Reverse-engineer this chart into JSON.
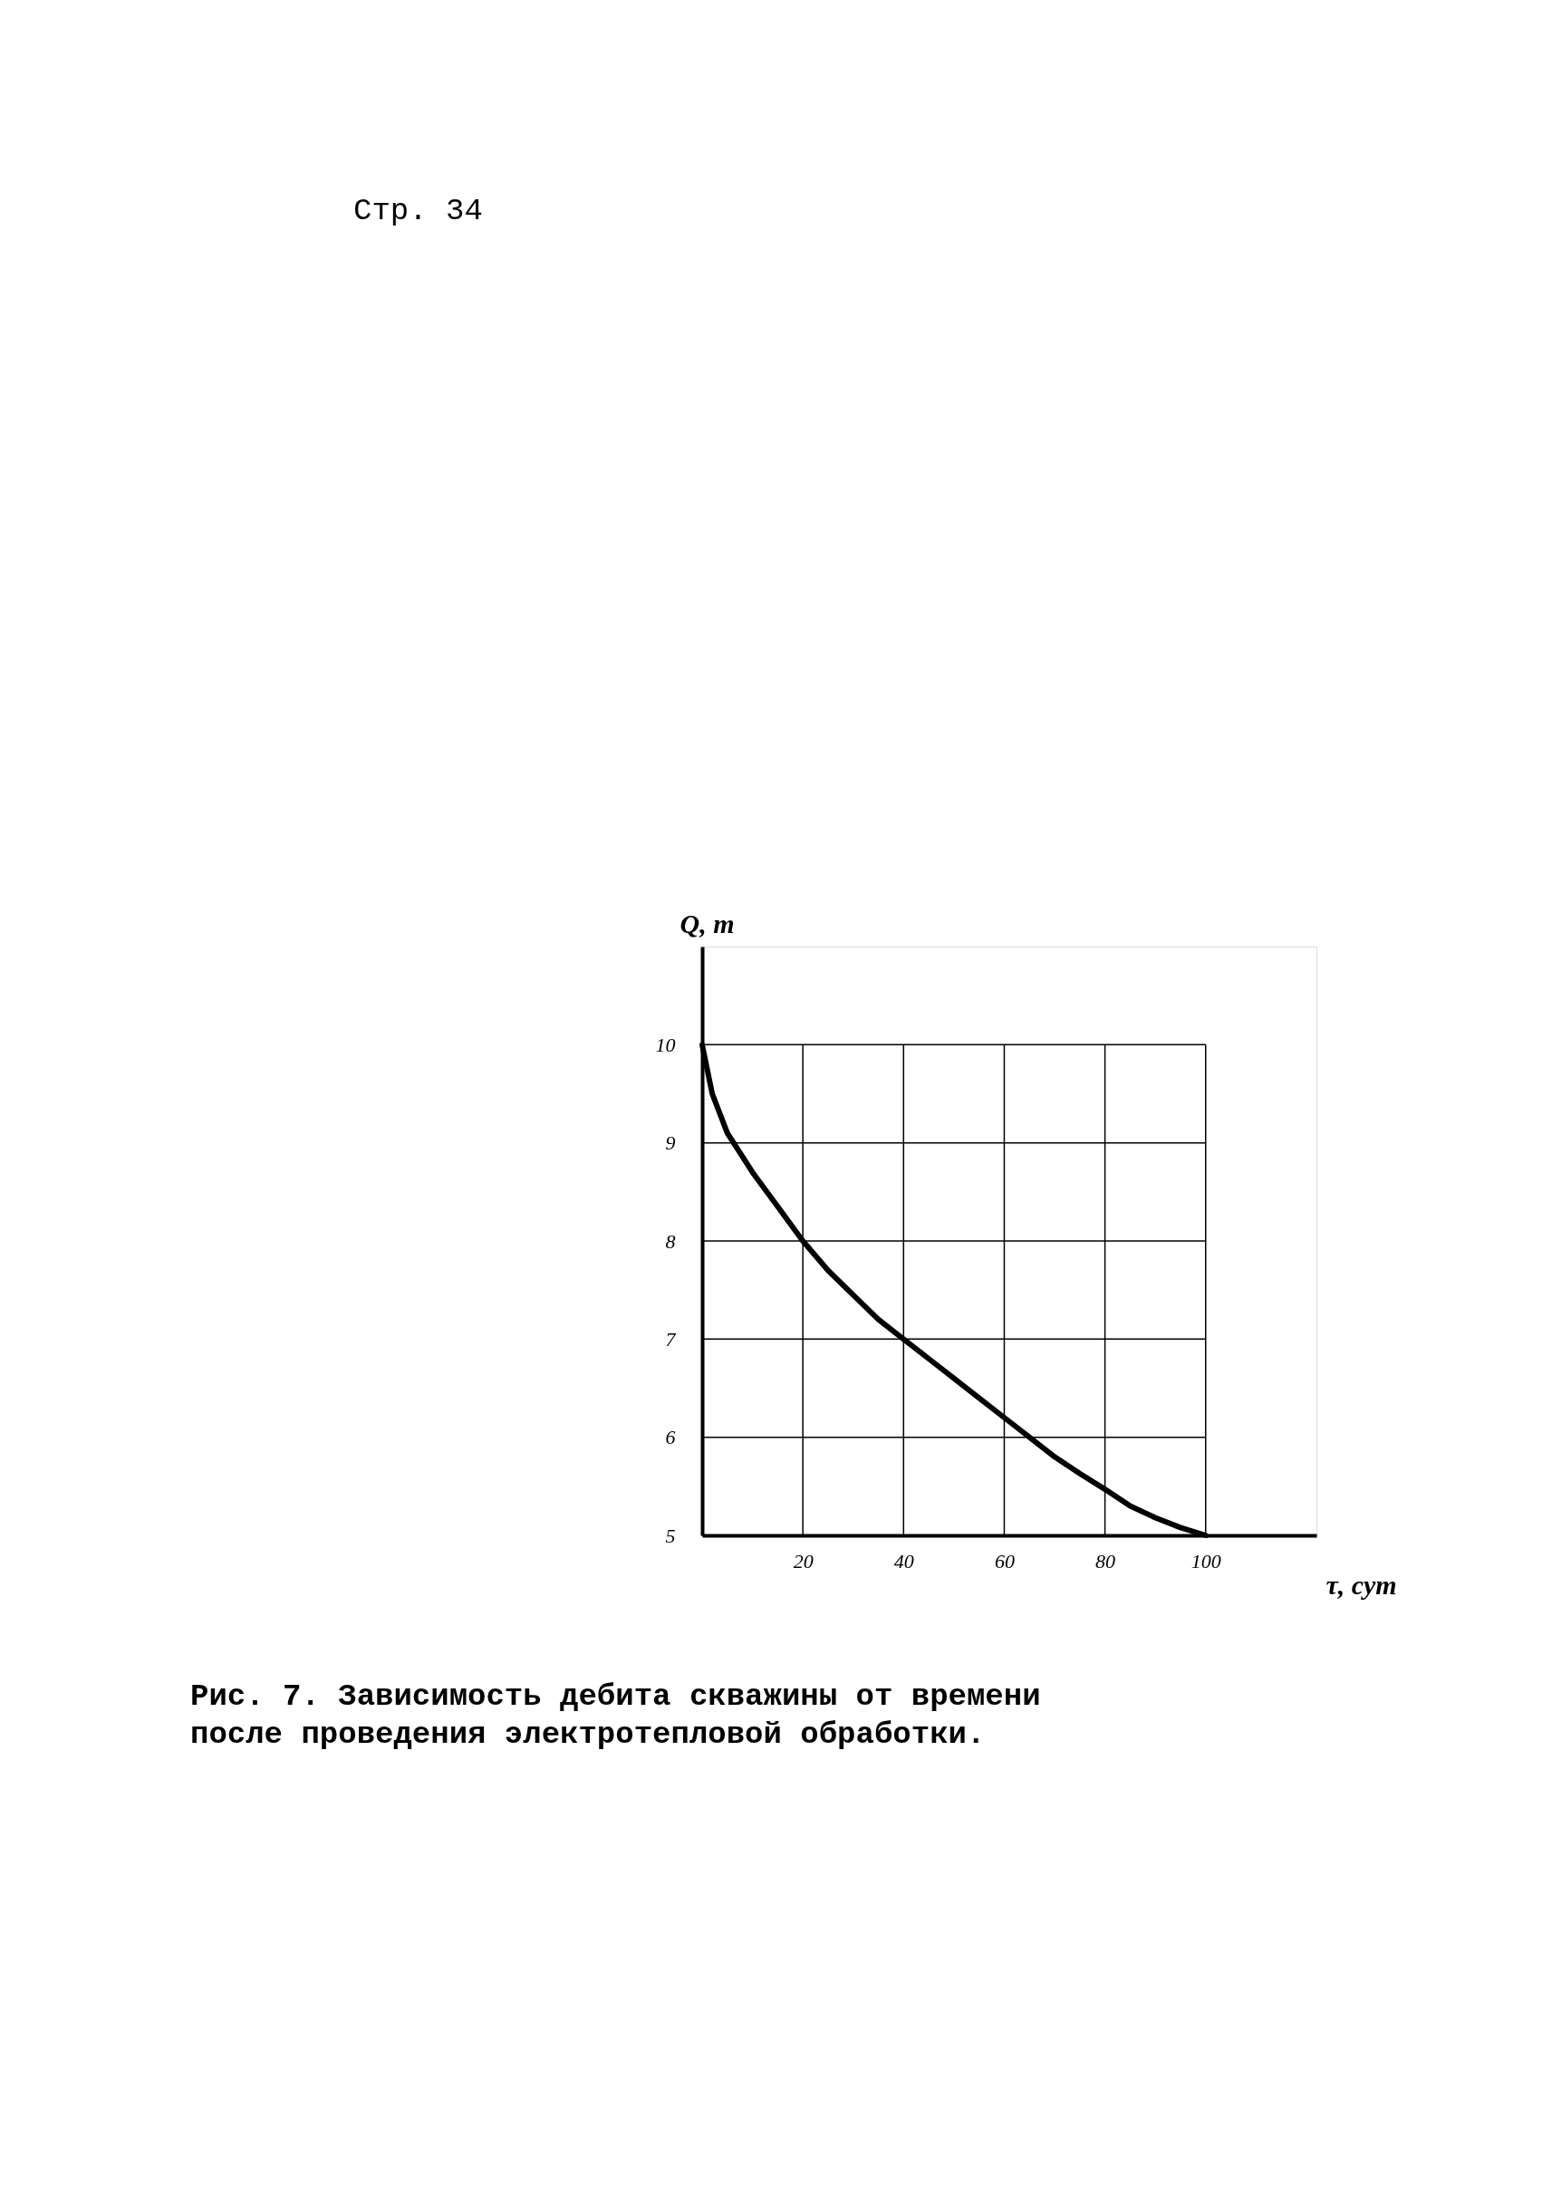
{
  "chart_data": {
    "type": "line",
    "title": "Рис. 7. Зависимость дебита скважины от времени после проведения электротепловой обработки.",
    "xlabel": "τ, сут",
    "ylabel": "Q, т",
    "annotations": [
      "Стр. 34"
    ],
    "x": [
      0,
      2,
      5,
      10,
      15,
      20,
      25,
      30,
      35,
      40,
      45,
      50,
      55,
      60,
      65,
      70,
      75,
      80,
      85,
      90,
      95,
      100
    ],
    "series": [
      {
        "color": "#000000",
        "values": [
          10,
          9.5,
          9.1,
          8.7,
          8.35,
          8.0,
          7.7,
          7.45,
          7.2,
          7.0,
          6.8,
          6.6,
          6.4,
          6.2,
          6.0,
          5.8,
          5.63,
          5.47,
          5.3,
          5.18,
          5.08,
          5.0
        ]
      }
    ],
    "xlim": [
      0,
      122
    ],
    "ylim": [
      5,
      11
    ],
    "xticks": [
      20,
      40,
      60,
      80,
      100
    ],
    "yticks": [
      5,
      6,
      7,
      8,
      9,
      10
    ],
    "grid": true
  }
}
